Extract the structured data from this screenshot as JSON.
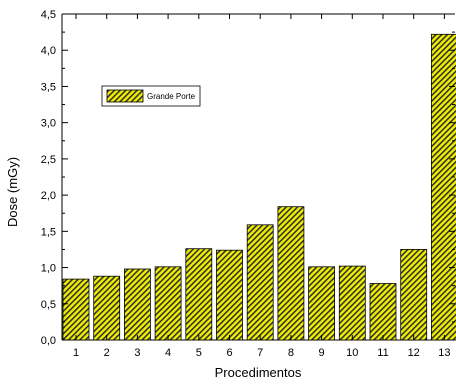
{
  "chart_data": {
    "type": "bar",
    "title": "",
    "xlabel": "Procedimentos",
    "ylabel": "Dose (mGy)",
    "categories": [
      "1",
      "2",
      "3",
      "4",
      "5",
      "6",
      "7",
      "8",
      "9",
      "10",
      "11",
      "12",
      "13"
    ],
    "series": [
      {
        "name": "Grande Porte",
        "values": [
          0.84,
          0.88,
          0.98,
          1.01,
          1.26,
          1.24,
          1.59,
          1.84,
          1.01,
          1.02,
          0.78,
          1.25,
          4.22
        ],
        "fill": "#f0f000",
        "hatch": "#333333"
      }
    ],
    "ylim": [
      0,
      4.5
    ],
    "yticks": [
      "0,0",
      "0,5",
      "1,0",
      "1,5",
      "2,0",
      "2,5",
      "3,0",
      "3,5",
      "4,0",
      "4,5"
    ],
    "grid": false,
    "legend_position": "upper-left"
  }
}
